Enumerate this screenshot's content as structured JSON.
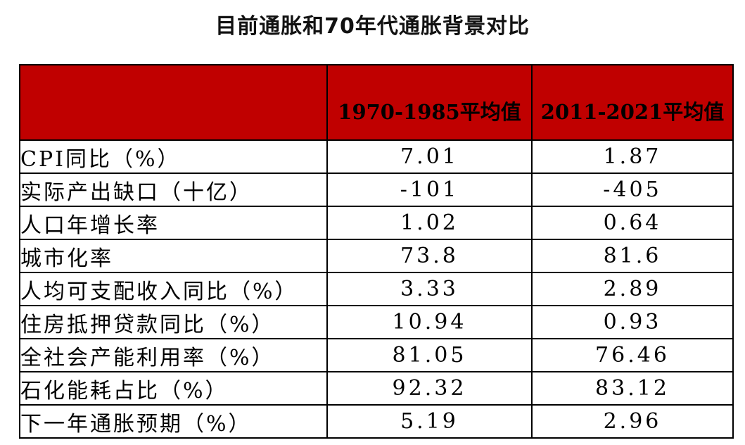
{
  "title": "目前通胀和70年代通胀背景对比",
  "header": {
    "col1": "",
    "col2": "1970-1985平均值",
    "col3": "2011-2021平均值"
  },
  "rows": [
    {
      "label": "CPI同比（%）",
      "v1": "7.01",
      "v2": "1.87"
    },
    {
      "label": "实际产出缺口（十亿）",
      "v1": "-101",
      "v2": "-405"
    },
    {
      "label": "人口年增长率",
      "v1": "1.02",
      "v2": "0.64"
    },
    {
      "label": "城市化率",
      "v1": "73.8",
      "v2": "81.6"
    },
    {
      "label": "人均可支配收入同比（%）",
      "v1": "3.33",
      "v2": "2.89"
    },
    {
      "label": "住房抵押贷款同比（%）",
      "v1": "10.94",
      "v2": "0.93"
    },
    {
      "label": "全社会产能利用率（%）",
      "v1": "81.05",
      "v2": "76.46"
    },
    {
      "label": "石化能耗占比（%）",
      "v1": "92.32",
      "v2": "83.12"
    },
    {
      "label": "下一年通胀预期（%）",
      "v1": "5.19",
      "v2": "2.96"
    }
  ],
  "colors": {
    "header_bg": "#c00000",
    "border": "#000000",
    "text": "#000000"
  }
}
